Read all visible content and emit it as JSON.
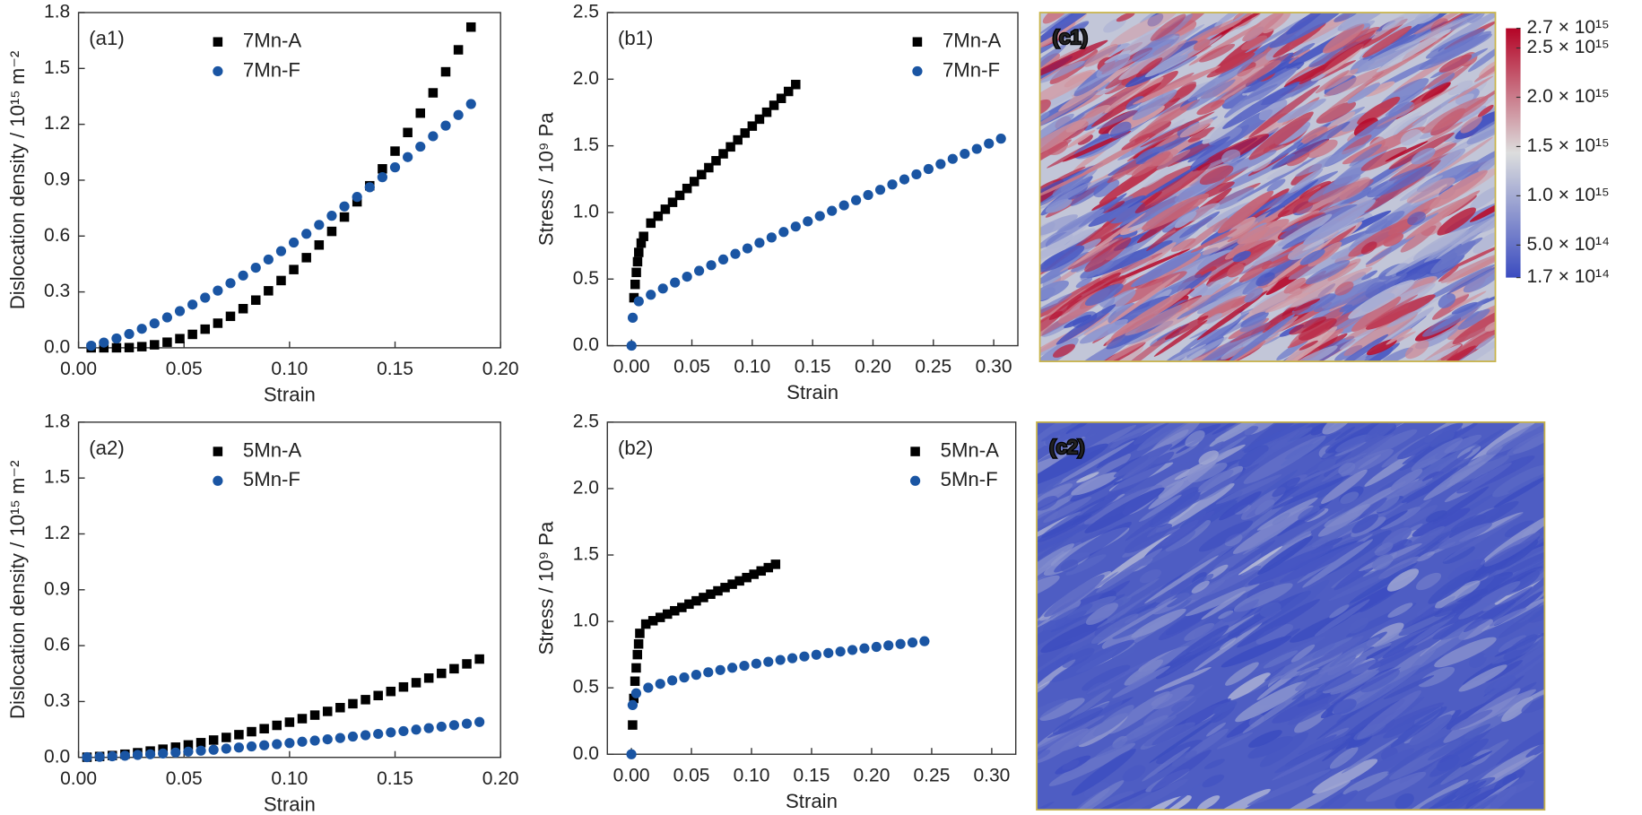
{
  "chart_data": [
    {
      "type": "scatter",
      "panel_label": "(a1)",
      "xlabel": "Strain",
      "ylabel": "Dislocation density / 10¹⁵ m⁻²",
      "xlim": [
        0,
        0.2
      ],
      "ylim": [
        0,
        1.8
      ],
      "xticks": [
        {
          "value": 0,
          "label": "0.00"
        },
        0.05,
        {
          "value": 0.1,
          "label": "0.10"
        },
        0.15,
        {
          "value": 0.2,
          "label": "0.20"
        }
      ],
      "yticks": [
        {
          "value": 0,
          "label": "0.0"
        },
        0.3,
        0.6,
        0.9,
        1.2,
        1.5,
        1.8
      ],
      "legend": "upper center",
      "series": [
        {
          "name": "7Mn-A",
          "color": "#000000",
          "marker": "square",
          "x": [
            0.006,
            0.012,
            0.018,
            0.024,
            0.03,
            0.036,
            0.042,
            0.048,
            0.054,
            0.06,
            0.066,
            0.072,
            0.078,
            0.084,
            0.09,
            0.096,
            0.102,
            0.108,
            0.114,
            0.12,
            0.126,
            0.132,
            0.138,
            0.144,
            0.15,
            0.156,
            0.162,
            0.168,
            0.174,
            0.18,
            0.186
          ],
          "values": [
            0,
            0,
            0,
            0.001,
            0.006,
            0.016,
            0.03,
            0.049,
            0.072,
            0.1,
            0.132,
            0.169,
            0.21,
            0.256,
            0.306,
            0.361,
            0.42,
            0.484,
            0.552,
            0.625,
            0.702,
            0.784,
            0.87,
            0.961,
            1.056,
            1.156,
            1.26,
            1.369,
            1.482,
            1.6,
            1.722
          ]
        },
        {
          "name": "7Mn-F",
          "color": "#1a55a3",
          "marker": "circle",
          "x": [
            0.006,
            0.012,
            0.018,
            0.024,
            0.03,
            0.036,
            0.042,
            0.048,
            0.054,
            0.06,
            0.066,
            0.072,
            0.078,
            0.084,
            0.09,
            0.096,
            0.102,
            0.108,
            0.114,
            0.12,
            0.126,
            0.132,
            0.138,
            0.144,
            0.15,
            0.156,
            0.162,
            0.168,
            0.174,
            0.18,
            0.186
          ],
          "values": [
            0.011,
            0.028,
            0.05,
            0.074,
            0.102,
            0.131,
            0.163,
            0.197,
            0.232,
            0.269,
            0.307,
            0.347,
            0.388,
            0.43,
            0.474,
            0.519,
            0.565,
            0.612,
            0.66,
            0.709,
            0.759,
            0.81,
            0.862,
            0.916,
            0.969,
            1.024,
            1.08,
            1.136,
            1.193,
            1.25,
            1.309
          ]
        }
      ]
    },
    {
      "type": "scatter",
      "panel_label": "(b1)",
      "xlabel": "Strain",
      "ylabel": "Stress / 10⁹ Pa",
      "xlim": [
        -0.02,
        0.32
      ],
      "ylim": [
        0,
        2.5
      ],
      "xticks": [
        {
          "value": 0,
          "label": "0.00"
        },
        0.05,
        {
          "value": 0.1,
          "label": "0.10"
        },
        0.15,
        {
          "value": 0.2,
          "label": "0.20"
        },
        0.25,
        {
          "value": 0.3,
          "label": "0.30"
        }
      ],
      "yticks": [
        {
          "value": 0,
          "label": "0.0"
        },
        0.5,
        {
          "value": 1,
          "label": "1.0"
        },
        1.5,
        {
          "value": 2,
          "label": "2.0"
        },
        2.5
      ],
      "legend": "upper right",
      "series": [
        {
          "name": "7Mn-A",
          "color": "#000000",
          "marker": "square",
          "x": [
            0.002,
            0.003,
            0.004,
            0.005,
            0.006,
            0.008,
            0.01,
            0.016,
            0.022,
            0.028,
            0.034,
            0.04,
            0.046,
            0.052,
            0.058,
            0.064,
            0.07,
            0.076,
            0.082,
            0.088,
            0.094,
            0.1,
            0.106,
            0.112,
            0.118,
            0.124,
            0.13,
            0.136
          ],
          "values": [
            0.36,
            0.46,
            0.55,
            0.63,
            0.7,
            0.77,
            0.82,
            0.92,
            0.972,
            1.024,
            1.076,
            1.128,
            1.18,
            1.232,
            1.284,
            1.336,
            1.388,
            1.44,
            1.492,
            1.544,
            1.596,
            1.648,
            1.7,
            1.752,
            1.804,
            1.856,
            1.908,
            1.96
          ]
        },
        {
          "name": "7Mn-F",
          "color": "#1a55a3",
          "marker": "circle",
          "x": [
            0,
            0.001,
            0.006,
            0.016,
            0.026,
            0.036,
            0.046,
            0.056,
            0.066,
            0.076,
            0.086,
            0.096,
            0.106,
            0.116,
            0.126,
            0.136,
            0.146,
            0.156,
            0.166,
            0.176,
            0.186,
            0.196,
            0.206,
            0.216,
            0.226,
            0.236,
            0.246,
            0.256,
            0.266,
            0.276,
            0.286,
            0.296,
            0.306
          ],
          "values": [
            0,
            0.21,
            0.333,
            0.382,
            0.429,
            0.474,
            0.518,
            0.562,
            0.604,
            0.647,
            0.689,
            0.73,
            0.772,
            0.812,
            0.853,
            0.894,
            0.933,
            0.973,
            1.012,
            1.053,
            1.092,
            1.131,
            1.17,
            1.21,
            1.248,
            1.286,
            1.326,
            1.363,
            1.402,
            1.44,
            1.477,
            1.517,
            1.554
          ]
        }
      ]
    },
    {
      "type": "scatter",
      "panel_label": "(a2)",
      "xlabel": "Strain",
      "ylabel": "Dislocation density / 10¹⁵ m⁻²",
      "xlim": [
        0,
        0.2
      ],
      "ylim": [
        0,
        1.8
      ],
      "xticks": [
        {
          "value": 0,
          "label": "0.00"
        },
        0.05,
        {
          "value": 0.1,
          "label": "0.10"
        },
        0.15,
        {
          "value": 0.2,
          "label": "0.20"
        }
      ],
      "yticks": [
        {
          "value": 0,
          "label": "0.0"
        },
        0.3,
        0.6,
        0.9,
        1.2,
        1.5,
        1.8
      ],
      "legend": "upper center",
      "series": [
        {
          "name": "5Mn-A",
          "color": "#000000",
          "marker": "square",
          "x": [
            0.004,
            0.01,
            0.016,
            0.022,
            0.028,
            0.034,
            0.04,
            0.046,
            0.052,
            0.058,
            0.064,
            0.07,
            0.076,
            0.082,
            0.088,
            0.094,
            0.1,
            0.106,
            0.112,
            0.118,
            0.124,
            0.13,
            0.136,
            0.142,
            0.148,
            0.154,
            0.16,
            0.166,
            0.172,
            0.178,
            0.184,
            0.19
          ],
          "values": [
            0.001,
            0.005,
            0.01,
            0.017,
            0.025,
            0.034,
            0.044,
            0.055,
            0.067,
            0.079,
            0.093,
            0.107,
            0.122,
            0.138,
            0.154,
            0.172,
            0.189,
            0.208,
            0.227,
            0.247,
            0.267,
            0.288,
            0.31,
            0.332,
            0.354,
            0.378,
            0.401,
            0.426,
            0.451,
            0.476,
            0.502,
            0.528
          ]
        },
        {
          "name": "5Mn-F",
          "color": "#1a55a3",
          "marker": "circle",
          "x": [
            0.004,
            0.01,
            0.016,
            0.022,
            0.028,
            0.034,
            0.04,
            0.046,
            0.052,
            0.058,
            0.064,
            0.07,
            0.076,
            0.082,
            0.088,
            0.094,
            0.1,
            0.106,
            0.112,
            0.118,
            0.124,
            0.13,
            0.136,
            0.142,
            0.148,
            0.154,
            0.16,
            0.166,
            0.172,
            0.178,
            0.184,
            0.19
          ],
          "values": [
            0.001,
            0.003,
            0.006,
            0.009,
            0.013,
            0.017,
            0.021,
            0.026,
            0.031,
            0.036,
            0.041,
            0.047,
            0.053,
            0.059,
            0.065,
            0.071,
            0.077,
            0.084,
            0.09,
            0.097,
            0.104,
            0.112,
            0.119,
            0.126,
            0.134,
            0.141,
            0.149,
            0.157,
            0.165,
            0.173,
            0.181,
            0.19
          ]
        }
      ]
    },
    {
      "type": "scatter",
      "panel_label": "(b2)",
      "xlabel": "Strain",
      "ylabel": "Stress / 10⁹ Pa",
      "xlim": [
        -0.02,
        0.32
      ],
      "ylim": [
        0,
        2.5
      ],
      "xticks": [
        {
          "value": 0,
          "label": "0.00"
        },
        0.05,
        {
          "value": 0.1,
          "label": "0.10"
        },
        0.15,
        {
          "value": 0.2,
          "label": "0.20"
        },
        0.25,
        {
          "value": 0.3,
          "label": "0.30"
        }
      ],
      "yticks": [
        {
          "value": 0,
          "label": "0.0"
        },
        0.5,
        {
          "value": 1,
          "label": "1.0"
        },
        1.5,
        {
          "value": 2,
          "label": "2.0"
        },
        2.5
      ],
      "legend": "upper right",
      "series": [
        {
          "name": "5Mn-A",
          "color": "#000000",
          "marker": "square",
          "x": [
            0.001,
            0.002,
            0.003,
            0.004,
            0.005,
            0.006,
            0.007,
            0.012,
            0.018,
            0.024,
            0.03,
            0.036,
            0.042,
            0.048,
            0.054,
            0.06,
            0.066,
            0.072,
            0.078,
            0.084,
            0.09,
            0.096,
            0.102,
            0.108,
            0.114,
            0.12
          ],
          "values": [
            0.22,
            0.42,
            0.55,
            0.65,
            0.75,
            0.83,
            0.91,
            0.98,
            1.005,
            1.03,
            1.055,
            1.08,
            1.105,
            1.13,
            1.155,
            1.18,
            1.205,
            1.23,
            1.255,
            1.28,
            1.305,
            1.33,
            1.355,
            1.38,
            1.405,
            1.43
          ]
        },
        {
          "name": "5Mn-F",
          "color": "#1a55a3",
          "marker": "circle",
          "x": [
            0,
            0.001,
            0.004,
            0.014,
            0.024,
            0.034,
            0.044,
            0.054,
            0.064,
            0.074,
            0.084,
            0.094,
            0.104,
            0.114,
            0.124,
            0.134,
            0.144,
            0.154,
            0.164,
            0.174,
            0.184,
            0.194,
            0.204,
            0.214,
            0.224,
            0.234,
            0.244
          ],
          "values": [
            0,
            0.37,
            0.459,
            0.501,
            0.53,
            0.556,
            0.578,
            0.598,
            0.617,
            0.634,
            0.651,
            0.666,
            0.682,
            0.696,
            0.71,
            0.723,
            0.736,
            0.749,
            0.762,
            0.773,
            0.785,
            0.797,
            0.808,
            0.819,
            0.83,
            0.841,
            0.851
          ]
        }
      ]
    },
    {
      "type": "heatmap",
      "panel_label": "(c1)",
      "colorbar": {
        "lim": [
          170000000000000,
          2700000000000000
        ],
        "colormap": [
          "#3b4cc0",
          "#dcdddd",
          "#b40426"
        ],
        "ticks": [
          {
            "value": 2700000000000000,
            "label": "2.7 × 10¹⁵"
          },
          {
            "value": 2500000000000000,
            "label": "2.5 × 10¹⁵"
          },
          {
            "value": 2000000000000000,
            "label": "2.0 × 10¹⁵"
          },
          {
            "value": 1500000000000000,
            "label": "1.5 × 10¹⁵"
          },
          {
            "value": 1000000000000000,
            "label": "1.0 × 10¹⁵"
          },
          {
            "value": 500000000000000,
            "label": "5.0 × 10¹⁴"
          },
          {
            "value": 170000000000000,
            "label": "1.7 × 10¹⁴"
          }
        ]
      }
    },
    {
      "type": "heatmap",
      "panel_label": "(c2)"
    }
  ]
}
